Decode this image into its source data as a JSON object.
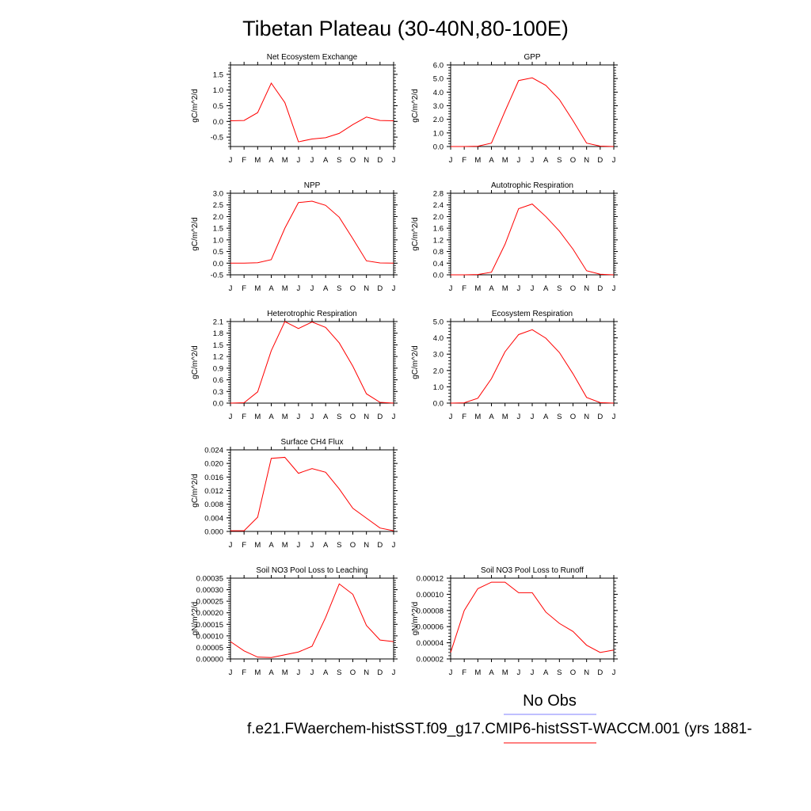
{
  "title": "Tibetan Plateau (30-40N,80-100E)",
  "legend": {
    "obs_label": "No Obs",
    "obs_color": "#8080ff",
    "case_label": "f.e21.FWaerchem-histSST.f09_g17.CMIP6-histSST-WACCM.001 (yrs 1881-",
    "case_color": "#ff0000"
  },
  "series_color": "#ff0000",
  "chart_data": [
    {
      "type": "line",
      "title": "Net Ecosystem Exchange",
      "ylabel": "gC/m^2/d",
      "x": [
        "J",
        "F",
        "M",
        "A",
        "M",
        "J",
        "J",
        "A",
        "S",
        "O",
        "N",
        "D",
        "J"
      ],
      "values": [
        0.02,
        0.03,
        0.28,
        1.22,
        0.6,
        -0.65,
        -0.56,
        -0.52,
        -0.38,
        -0.1,
        0.14,
        0.03,
        0.02
      ],
      "ylim": [
        -0.8,
        1.8
      ],
      "yticks": [
        "1.5",
        "1.0",
        "0.5",
        "0.0",
        "-0.5"
      ],
      "ytick_values": [
        1.5,
        1.0,
        0.5,
        0.0,
        -0.5
      ]
    },
    {
      "type": "line",
      "title": "GPP",
      "ylabel": "gC/m^2/d",
      "x": [
        "J",
        "F",
        "M",
        "A",
        "M",
        "J",
        "J",
        "A",
        "S",
        "O",
        "N",
        "D",
        "J"
      ],
      "values": [
        0.0,
        0.0,
        0.02,
        0.25,
        2.6,
        4.85,
        5.05,
        4.5,
        3.45,
        1.9,
        0.25,
        0.03,
        0.0
      ],
      "ylim": [
        0.0,
        6.0
      ],
      "yticks": [
        "6.0",
        "5.0",
        "4.0",
        "3.0",
        "2.0",
        "1.0",
        "0.0"
      ],
      "ytick_values": [
        6.0,
        5.0,
        4.0,
        3.0,
        2.0,
        1.0,
        0.0
      ]
    },
    {
      "type": "line",
      "title": "NPP",
      "ylabel": "gC/m^2/d",
      "x": [
        "J",
        "F",
        "M",
        "A",
        "M",
        "J",
        "J",
        "A",
        "S",
        "O",
        "N",
        "D",
        "J"
      ],
      "values": [
        0.0,
        0.0,
        0.02,
        0.15,
        1.5,
        2.6,
        2.66,
        2.48,
        1.97,
        1.05,
        0.1,
        0.01,
        0.0
      ],
      "ylim": [
        -0.5,
        3.0
      ],
      "yticks": [
        "3.0",
        "2.5",
        "2.0",
        "1.5",
        "1.0",
        "0.5",
        "0.0",
        "-0.5"
      ],
      "ytick_values": [
        3.0,
        2.5,
        2.0,
        1.5,
        1.0,
        0.5,
        0.0,
        -0.5
      ]
    },
    {
      "type": "line",
      "title": "Autotrophic Respiration",
      "ylabel": "gC/m^2/d",
      "x": [
        "J",
        "F",
        "M",
        "A",
        "M",
        "J",
        "J",
        "A",
        "S",
        "O",
        "N",
        "D",
        "J"
      ],
      "values": [
        0.0,
        0.0,
        0.01,
        0.09,
        1.05,
        2.27,
        2.43,
        2.0,
        1.5,
        0.88,
        0.14,
        0.02,
        0.0
      ],
      "ylim": [
        0.0,
        2.8
      ],
      "yticks": [
        "2.8",
        "2.4",
        "2.0",
        "1.6",
        "1.2",
        "0.8",
        "0.4",
        "0.0"
      ],
      "ytick_values": [
        2.8,
        2.4,
        2.0,
        1.6,
        1.2,
        0.8,
        0.4,
        0.0
      ]
    },
    {
      "type": "line",
      "title": "Heterotrophic Respiration",
      "ylabel": "gC/m^2/d",
      "x": [
        "J",
        "F",
        "M",
        "A",
        "M",
        "J",
        "J",
        "A",
        "S",
        "O",
        "N",
        "D",
        "J"
      ],
      "values": [
        0.0,
        0.01,
        0.29,
        1.35,
        2.1,
        1.92,
        2.09,
        1.95,
        1.55,
        0.95,
        0.24,
        0.02,
        0.0
      ],
      "ylim": [
        0.0,
        2.1
      ],
      "yticks": [
        "2.1",
        "1.8",
        "1.5",
        "1.2",
        "0.9",
        "0.6",
        "0.3",
        "0.0"
      ],
      "ytick_values": [
        2.1,
        1.8,
        1.5,
        1.2,
        0.9,
        0.6,
        0.3,
        0.0
      ]
    },
    {
      "type": "line",
      "title": "Ecosystem Respiration",
      "ylabel": "gC/m^2/d",
      "x": [
        "J",
        "F",
        "M",
        "A",
        "M",
        "J",
        "J",
        "A",
        "S",
        "O",
        "N",
        "D",
        "J"
      ],
      "values": [
        0.0,
        0.02,
        0.3,
        1.5,
        3.15,
        4.2,
        4.5,
        3.98,
        3.1,
        1.8,
        0.35,
        0.03,
        0.0
      ],
      "ylim": [
        0.0,
        5.0
      ],
      "yticks": [
        "5.0",
        "4.0",
        "3.0",
        "2.0",
        "1.0",
        "0.0"
      ],
      "ytick_values": [
        5.0,
        4.0,
        3.0,
        2.0,
        1.0,
        0.0
      ]
    },
    {
      "type": "line",
      "title": "Surface CH4 Flux",
      "ylabel": "gC/m^2/d",
      "x": [
        "J",
        "F",
        "M",
        "A",
        "M",
        "J",
        "J",
        "A",
        "S",
        "O",
        "N",
        "D",
        "J"
      ],
      "values": [
        0.0002,
        0.0002,
        0.0042,
        0.0215,
        0.0218,
        0.0171,
        0.0185,
        0.0174,
        0.0125,
        0.0068,
        0.0039,
        0.001,
        0.0002
      ],
      "ylim": [
        0.0,
        0.024
      ],
      "yticks": [
        "0.024",
        "0.020",
        "0.016",
        "0.012",
        "0.008",
        "0.004",
        "0.000"
      ],
      "ytick_values": [
        0.024,
        0.02,
        0.016,
        0.012,
        0.008,
        0.004,
        0.0
      ]
    },
    {
      "type": "line",
      "title": "Soil NO3 Pool Loss to Leaching",
      "ylabel": "gN/m^2/d",
      "x": [
        "J",
        "F",
        "M",
        "A",
        "M",
        "J",
        "J",
        "A",
        "S",
        "O",
        "N",
        "D",
        "J"
      ],
      "values": [
        7.5e-05,
        3.5e-05,
        8e-06,
        6e-06,
        1.8e-05,
        3e-05,
        5.5e-05,
        0.00018,
        0.000325,
        0.00028,
        0.000145,
        8.2e-05,
        7.5e-05
      ],
      "ylim": [
        0.0,
        0.00035
      ],
      "yticks": [
        "0.00035",
        "0.00030",
        "0.00025",
        "0.00020",
        "0.00015",
        "0.00010",
        "0.00005",
        "0.00000"
      ],
      "ytick_values": [
        0.00035,
        0.0003,
        0.00025,
        0.0002,
        0.00015,
        0.0001,
        5e-05,
        0.0
      ]
    },
    {
      "type": "line",
      "title": "Soil NO3 Pool Loss to Runoff",
      "ylabel": "gN/m^2/d",
      "x": [
        "J",
        "F",
        "M",
        "A",
        "M",
        "J",
        "J",
        "A",
        "S",
        "O",
        "N",
        "D",
        "J"
      ],
      "values": [
        2.8e-05,
        8e-05,
        0.000107,
        0.000115,
        0.000115,
        0.000102,
        0.000102,
        7.8e-05,
        6.4e-05,
        5.4e-05,
        3.7e-05,
        2.8e-05,
        3.1e-05
      ],
      "ylim": [
        2e-05,
        0.00012
      ],
      "yticks": [
        "0.00012",
        "0.00010",
        "0.00008",
        "0.00006",
        "0.00004",
        "0.00002"
      ],
      "ytick_values": [
        0.00012,
        0.0001,
        8e-05,
        6e-05,
        4e-05,
        2e-05
      ]
    }
  ]
}
